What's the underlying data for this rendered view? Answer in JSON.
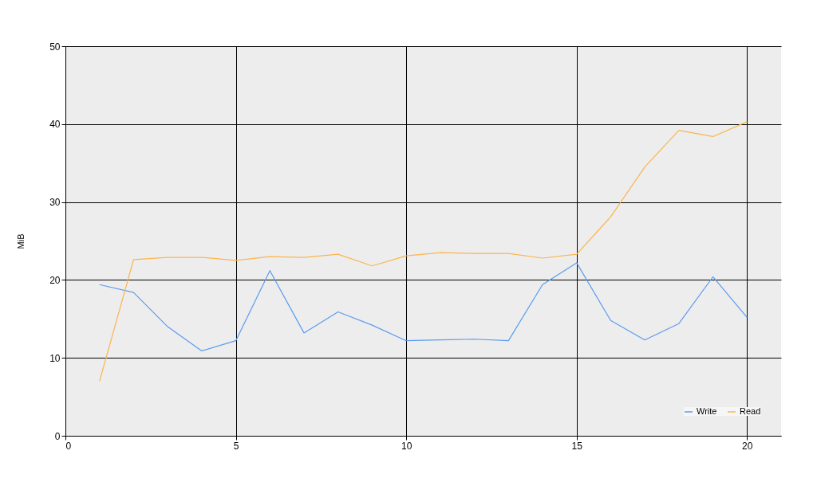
{
  "chart_data": {
    "type": "line",
    "ylabel": "MiB",
    "x": [
      1,
      2,
      3,
      4,
      5,
      6,
      7,
      8,
      9,
      10,
      11,
      12,
      13,
      14,
      15,
      16,
      17,
      18,
      19,
      20
    ],
    "series": [
      {
        "name": "Write",
        "color": "#5b9bf0",
        "values": [
          19.4,
          18.4,
          14.0,
          10.9,
          12.2,
          21.2,
          13.2,
          15.9,
          14.2,
          12.2,
          12.3,
          12.4,
          12.2,
          19.4,
          22.2,
          14.8,
          12.3,
          14.4,
          20.4,
          15.2
        ]
      },
      {
        "name": "Read",
        "color": "#fbb54d",
        "values": [
          7.0,
          22.6,
          22.9,
          22.9,
          22.5,
          23.0,
          22.9,
          23.3,
          21.8,
          23.1,
          23.5,
          23.4,
          23.4,
          22.8,
          23.3,
          28.1,
          34.5,
          39.2,
          38.4,
          40.3
        ]
      }
    ],
    "xlim": [
      0,
      21
    ],
    "xticks": [
      0,
      5,
      10,
      15,
      20
    ],
    "ylim": [
      0,
      50
    ],
    "yticks": [
      0,
      10,
      20,
      30,
      40,
      50
    ],
    "grid": true,
    "legend": "bottom right",
    "marker": "none",
    "line_style": "solid"
  }
}
